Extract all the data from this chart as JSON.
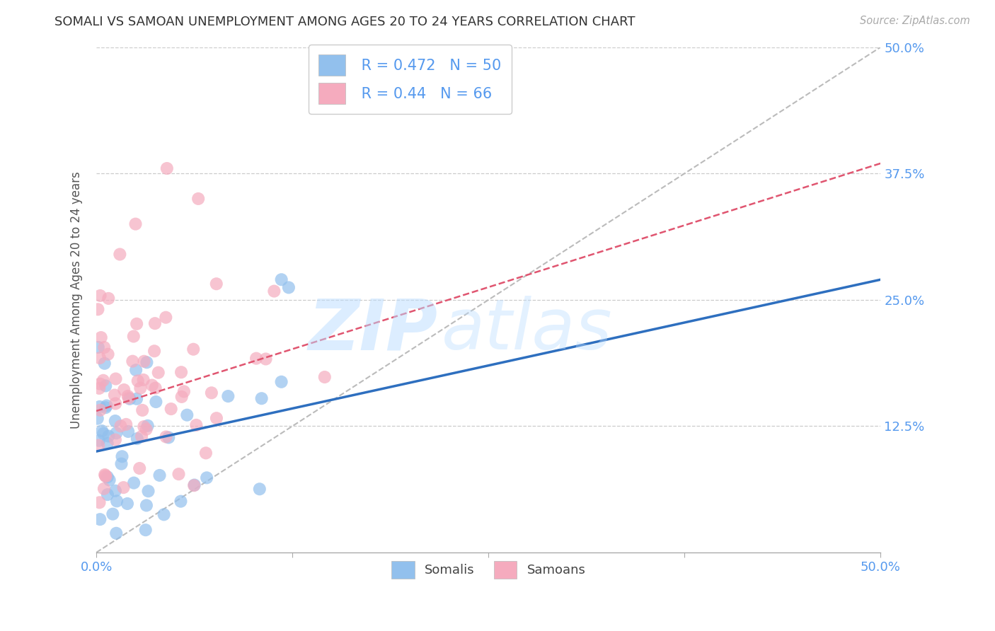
{
  "title": "SOMALI VS SAMOAN UNEMPLOYMENT AMONG AGES 20 TO 24 YEARS CORRELATION CHART",
  "source": "Source: ZipAtlas.com",
  "ylabel": "Unemployment Among Ages 20 to 24 years",
  "xlim": [
    0.0,
    0.5
  ],
  "ylim": [
    0.0,
    0.5
  ],
  "xtick_vals": [
    0.0,
    0.125,
    0.25,
    0.375,
    0.5
  ],
  "xtick_labels_show": [
    "0.0%",
    "",
    "",
    "",
    "50.0%"
  ],
  "ytick_vals": [
    0.125,
    0.25,
    0.375,
    0.5
  ],
  "ytick_labels": [
    "12.5%",
    "25.0%",
    "37.5%",
    "50.0%"
  ],
  "somali_color": "#92C0ED",
  "samoan_color": "#F5ABBE",
  "somali_line_color": "#2E6FBF",
  "samoan_line_color": "#E05570",
  "dashed_line_color": "#BBBBBB",
  "grid_color": "#CCCCCC",
  "title_color": "#333333",
  "axis_label_color": "#555555",
  "tick_label_color": "#5599EE",
  "R_somali": 0.472,
  "N_somali": 50,
  "R_samoan": 0.44,
  "N_samoan": 66,
  "somali_intercept": 0.1,
  "somali_slope": 0.34,
  "samoan_intercept": 0.14,
  "samoan_slope": 0.49,
  "watermark_zip": "ZIP",
  "watermark_atlas": "atlas",
  "background_color": "#FFFFFF"
}
